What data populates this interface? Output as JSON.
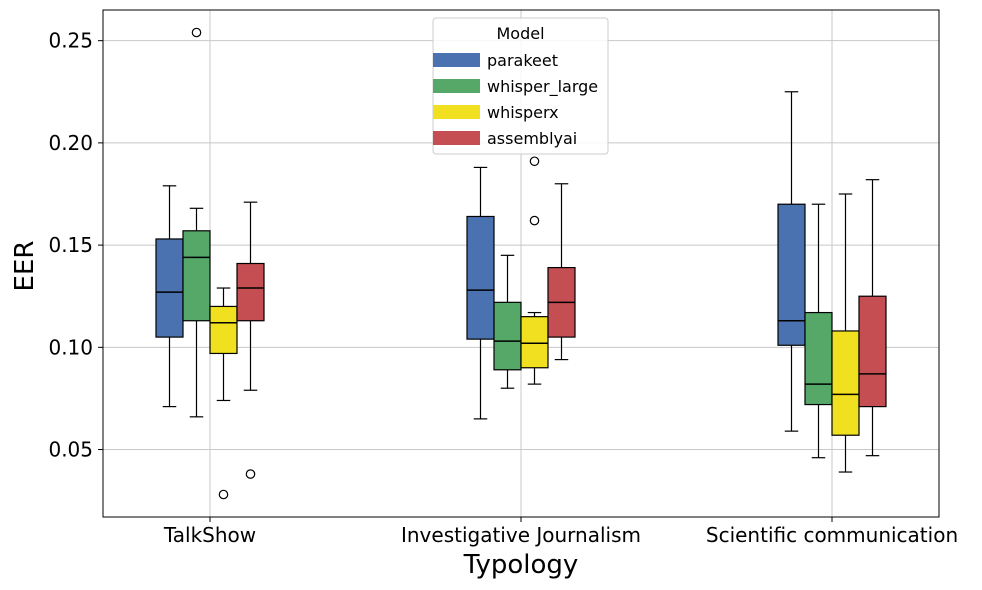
{
  "chart_data": {
    "type": "box",
    "title": "",
    "xlabel": "Typology",
    "ylabel": "EER",
    "ylim": [
      0.017,
      0.265
    ],
    "yticks": [
      0.05,
      0.1,
      0.15,
      0.2,
      0.25
    ],
    "ytick_labels": [
      "0.05",
      "0.10",
      "0.15",
      "0.20",
      "0.25"
    ],
    "grid": true,
    "categories": [
      "TalkShow",
      "Investigative Journalism",
      "Scientific communication"
    ],
    "legend": {
      "title": "Model",
      "placement": "top-center"
    },
    "series": [
      {
        "name": "parakeet",
        "color": "#4a72b0",
        "boxes": [
          {
            "whislo": 0.071,
            "q1": 0.105,
            "med": 0.127,
            "q3": 0.153,
            "whishi": 0.179,
            "fliers": []
          },
          {
            "whislo": 0.065,
            "q1": 0.104,
            "med": 0.128,
            "q3": 0.164,
            "whishi": 0.188,
            "fliers": []
          },
          {
            "whislo": 0.059,
            "q1": 0.101,
            "med": 0.113,
            "q3": 0.17,
            "whishi": 0.225,
            "fliers": []
          }
        ]
      },
      {
        "name": "whisper_large",
        "color": "#55a868",
        "boxes": [
          {
            "whislo": 0.066,
            "q1": 0.113,
            "med": 0.144,
            "q3": 0.157,
            "whishi": 0.168,
            "fliers": [
              0.254
            ]
          },
          {
            "whislo": 0.08,
            "q1": 0.089,
            "med": 0.103,
            "q3": 0.122,
            "whishi": 0.145,
            "fliers": []
          },
          {
            "whislo": 0.046,
            "q1": 0.072,
            "med": 0.082,
            "q3": 0.117,
            "whishi": 0.17,
            "fliers": []
          }
        ]
      },
      {
        "name": "whisperx",
        "color": "#f0e020",
        "boxes": [
          {
            "whislo": 0.074,
            "q1": 0.097,
            "med": 0.112,
            "q3": 0.12,
            "whishi": 0.129,
            "fliers": [
              0.028
            ]
          },
          {
            "whislo": 0.082,
            "q1": 0.09,
            "med": 0.102,
            "q3": 0.115,
            "whishi": 0.117,
            "fliers": [
              0.162,
              0.191
            ]
          },
          {
            "whislo": 0.039,
            "q1": 0.057,
            "med": 0.077,
            "q3": 0.108,
            "whishi": 0.175,
            "fliers": []
          }
        ]
      },
      {
        "name": "assemblyai",
        "color": "#c44e52",
        "boxes": [
          {
            "whislo": 0.079,
            "q1": 0.113,
            "med": 0.129,
            "q3": 0.141,
            "whishi": 0.171,
            "fliers": [
              0.038
            ]
          },
          {
            "whislo": 0.094,
            "q1": 0.105,
            "med": 0.122,
            "q3": 0.139,
            "whishi": 0.18,
            "fliers": []
          },
          {
            "whislo": 0.047,
            "q1": 0.071,
            "med": 0.087,
            "q3": 0.125,
            "whishi": 0.182,
            "fliers": []
          }
        ]
      }
    ]
  }
}
